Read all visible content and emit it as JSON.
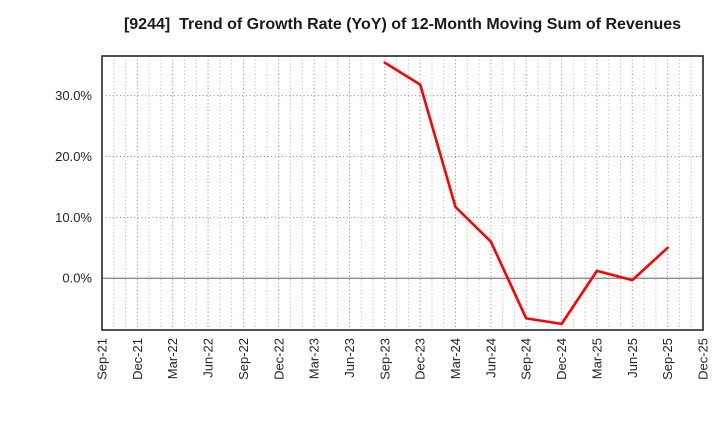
{
  "page_title": "[9244]  Trend of Growth Rate (YoY) of 12-Month Moving Sum of Revenues",
  "chart_data": {
    "type": "line",
    "title": "[9244]  Trend of Growth Rate (YoY) of 12-Month Moving Sum of Revenues",
    "xlabel": "",
    "ylabel": "",
    "x_tick_labels": [
      "Sep-21",
      "Dec-21",
      "Mar-22",
      "Jun-22",
      "Sep-22",
      "Dec-22",
      "Mar-23",
      "Jun-23",
      "Sep-23",
      "Dec-23",
      "Mar-24",
      "Jun-24",
      "Sep-24",
      "Dec-24",
      "Mar-25",
      "Jun-25",
      "Sep-25",
      "Dec-25"
    ],
    "y_tick_labels": [
      "0.0%",
      "10.0%",
      "20.0%",
      "30.0%"
    ],
    "y_ticks": [
      0,
      10,
      20,
      30
    ],
    "ylim": [
      -8.5,
      36.5
    ],
    "minor_x_divisions_per_major": 3,
    "grid": {
      "major": "dotted",
      "minor": "dotted",
      "zero_line": "solid"
    },
    "legend": "none",
    "series": [
      {
        "name": "Growth Rate (YoY) of 12-Month Moving Sum of Revenues",
        "color": "#ff0000",
        "x": [
          "Sep-23",
          "Dec-23",
          "Mar-24",
          "Jun-24",
          "Sep-24",
          "Dec-24",
          "Mar-25",
          "Jun-25",
          "Sep-25"
        ],
        "values": [
          35.4,
          31.8,
          11.7,
          6.0,
          -6.6,
          -7.5,
          1.2,
          -0.3,
          5.0
        ]
      }
    ]
  },
  "colors": {
    "line": "#ff0000",
    "title_text": "#1a1a1a",
    "tick_text": "#262626",
    "frame": "#262626",
    "major_grid": "#8a8a8a",
    "minor_grid": "#b5b5b5",
    "zero_line": "#808080",
    "background": "#ffffff"
  }
}
